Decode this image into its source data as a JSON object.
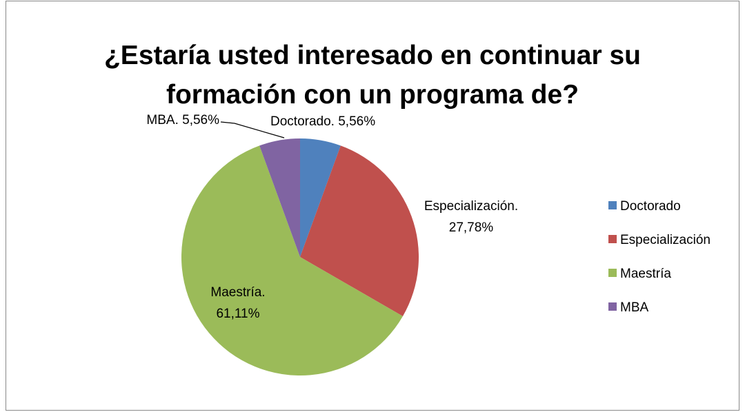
{
  "chart_data": {
    "type": "pie",
    "title": "¿Estaría usted interesado en continuar su formación con un programa de?",
    "categories": [
      "Doctorado",
      "Especialización",
      "Maestría",
      "MBA"
    ],
    "values": [
      5.56,
      27.78,
      61.11,
      5.56
    ],
    "value_labels": [
      "Doctorado. 5,56%",
      "Especialización. 27,78%",
      "Maestría. 61,11%",
      "MBA. 5,56%"
    ],
    "colors": [
      "#4f81bd",
      "#c0504d",
      "#9bbb59",
      "#8064a2"
    ],
    "legend": "right"
  }
}
